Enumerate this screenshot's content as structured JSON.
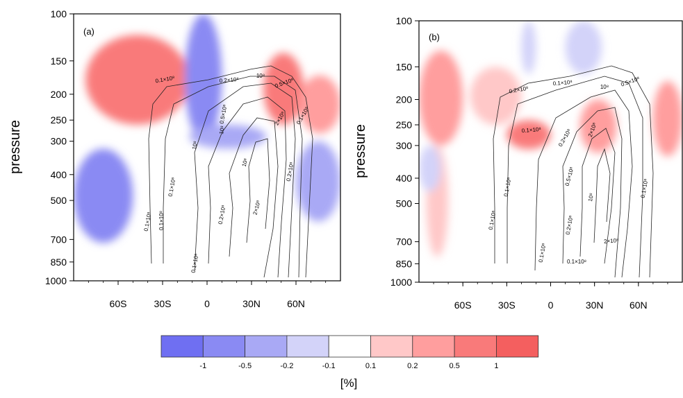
{
  "chart_data": [
    {
      "type": "heatmap",
      "panel_label": "(a)",
      "ylabel": "pressure",
      "yscale": "log",
      "ylim": [
        1000,
        100
      ],
      "yticks": [
        100,
        150,
        200,
        250,
        300,
        400,
        500,
        700,
        850,
        1000
      ],
      "xlim": [
        -90,
        90
      ],
      "xticks": [
        {
          "value": -60,
          "label": "60S"
        },
        {
          "value": -30,
          "label": "30S"
        },
        {
          "value": 0,
          "label": "0"
        },
        {
          "value": 30,
          "label": "30N"
        },
        {
          "value": 60,
          "label": "60N"
        }
      ],
      "fill_regions": [
        {
          "level": 0.5,
          "lat": [
            -82,
            -12
          ],
          "p": [
            120,
            260
          ]
        },
        {
          "level": 0.8,
          "lat": [
            -60,
            -22
          ],
          "p": [
            140,
            220
          ]
        },
        {
          "level": -0.6,
          "lat": [
            -15,
            10
          ],
          "p": [
            100,
            300
          ]
        },
        {
          "level": -0.5,
          "lat": [
            -12,
            40
          ],
          "p": [
            260,
            320
          ]
        },
        {
          "level": 0.8,
          "lat": [
            38,
            65
          ],
          "p": [
            140,
            260
          ]
        },
        {
          "level": 0.3,
          "lat": [
            62,
            90
          ],
          "p": [
            170,
            280
          ]
        },
        {
          "level": -0.7,
          "lat": [
            -90,
            -50
          ],
          "p": [
            320,
            720
          ]
        },
        {
          "level": -0.3,
          "lat": [
            60,
            90
          ],
          "p": [
            300,
            600
          ]
        }
      ],
      "contour_labels": [
        "0.1×10⁸",
        "0.2×10⁸",
        "10⁸",
        "0.5×10⁸",
        "2×10⁸",
        "10⁸",
        "0.1×10⁸",
        "0.2×10⁸",
        "10⁸",
        "0.1×10⁸",
        "0.1×10⁸",
        "0.1×10⁸",
        "0.1×10⁸",
        "0.2×10⁸",
        "2×10⁸",
        "10⁸",
        "0.5×10⁸"
      ]
    },
    {
      "type": "heatmap",
      "panel_label": "(b)",
      "ylabel": "pressure",
      "yscale": "log",
      "ylim": [
        1000,
        100
      ],
      "yticks": [
        100,
        150,
        200,
        250,
        300,
        400,
        500,
        700,
        850,
        1000
      ],
      "xlim": [
        -90,
        90
      ],
      "xticks": [
        {
          "value": -60,
          "label": "60S"
        },
        {
          "value": -30,
          "label": "30S"
        },
        {
          "value": 0,
          "label": "0"
        },
        {
          "value": 30,
          "label": "30N"
        },
        {
          "value": 60,
          "label": "60N"
        }
      ],
      "fill_regions": [
        {
          "level": 0.3,
          "lat": [
            -90,
            -60
          ],
          "p": [
            130,
            300
          ]
        },
        {
          "level": 0.15,
          "lat": [
            -85,
            -70
          ],
          "p": [
            300,
            800
          ]
        },
        {
          "level": 0.15,
          "lat": [
            -55,
            -20
          ],
          "p": [
            150,
            250
          ]
        },
        {
          "level": 0.6,
          "lat": [
            -30,
            0
          ],
          "p": [
            240,
            310
          ]
        },
        {
          "level": 0.3,
          "lat": [
            20,
            45
          ],
          "p": [
            200,
            320
          ]
        },
        {
          "level": -0.15,
          "lat": [
            -20,
            -10
          ],
          "p": [
            100,
            160
          ]
        },
        {
          "level": -0.15,
          "lat": [
            10,
            35
          ],
          "p": [
            100,
            160
          ]
        },
        {
          "level": 0.2,
          "lat": [
            70,
            90
          ],
          "p": [
            170,
            330
          ]
        },
        {
          "level": -0.12,
          "lat": [
            -90,
            -75
          ],
          "p": [
            300,
            450
          ]
        }
      ],
      "contour_labels": [
        "0.2×10⁸",
        "0.1×10⁸",
        "0.5×10⁸",
        "10⁸",
        "0.1×10⁸",
        "0.2×10⁸",
        "2×10⁸",
        "0.5×10⁸",
        "10⁸",
        "0.2×10⁸",
        "0.1×10⁸",
        "0.1×10⁸",
        "0.1×10⁸",
        "0.1×10⁸",
        "0.1×10⁸",
        "2×10⁸"
      ]
    }
  ],
  "colorbar": {
    "labels": [
      "-1",
      "-0.5",
      "-0.2",
      "-0.1",
      "0.1",
      "0.2",
      "0.5",
      "1"
    ],
    "colors": [
      "#6f6ff2",
      "#8a8af3",
      "#a9a9f5",
      "#d3d3f9",
      "#ffffff",
      "#ffc8c8",
      "#ff9e9e",
      "#f97a7a",
      "#f45f5f"
    ],
    "unit": "[%]"
  }
}
